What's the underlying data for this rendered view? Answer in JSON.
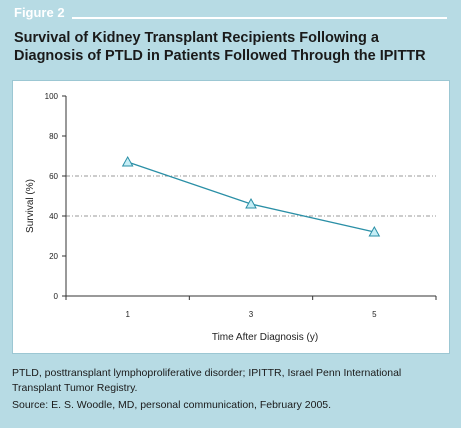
{
  "figure": {
    "label": "Figure 2",
    "title_line1": "Survival of Kidney Transplant Recipients Following a",
    "title_line2": "Diagnosis of PTLD in Patients Followed Through the IPITTR"
  },
  "caption": {
    "line1": "PTLD, posttransplant lymphoproliferative disorder; IPITTR, Israel Penn International",
    "line2": "Transplant Tumor Registry.",
    "source": "Source: E. S. Woodle, MD, personal communication, February 2005."
  },
  "chart_data": {
    "type": "line",
    "categories": [
      "1",
      "3",
      "5"
    ],
    "values": [
      67,
      46,
      32
    ],
    "xlabel": "Time After Diagnosis (y)",
    "ylabel": "Survival (%)",
    "ylim": [
      0,
      100
    ],
    "yticks": [
      "0",
      "20",
      "40",
      "60",
      "80",
      "100"
    ],
    "gridlines_at": [
      40,
      60
    ],
    "grid": "dashed horizontal at 40 and 60",
    "marker": "triangle",
    "colors": {
      "line": "#2a8fa6",
      "marker_fill": "#c6eef6",
      "grid": "#999999",
      "axis": "#333333"
    }
  }
}
